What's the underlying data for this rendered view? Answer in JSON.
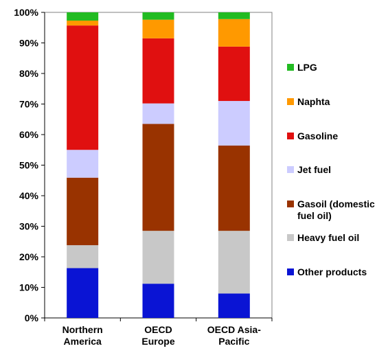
{
  "chart_data": {
    "type": "bar",
    "stacked": true,
    "categories": [
      "Northern\nAmerica",
      "OECD\nEurope",
      "OECD Asia-\nPacific"
    ],
    "ylim": [
      0,
      100
    ],
    "yticks": [
      0,
      10,
      20,
      30,
      40,
      50,
      60,
      70,
      80,
      90,
      100
    ],
    "ytick_labels": [
      "0%",
      "10%",
      "20%",
      "30%",
      "40%",
      "50%",
      "60%",
      "70%",
      "80%",
      "90%",
      "100%"
    ],
    "series": [
      {
        "name": "Other products",
        "color": "#0a14d4",
        "values": [
          16.3,
          11.2,
          8.0
        ]
      },
      {
        "name": "Heavy fuel oil",
        "color": "#c8c8c8",
        "values": [
          7.5,
          17.3,
          20.5
        ]
      },
      {
        "name": "Gasoil (domestic\nfuel oil)",
        "color": "#993300",
        "values": [
          22.1,
          35.0,
          27.9
        ]
      },
      {
        "name": "Jet fuel",
        "color": "#ccccff",
        "values": [
          9.1,
          6.7,
          14.6
        ]
      },
      {
        "name": "Gasoline",
        "color": "#e01010",
        "values": [
          40.7,
          21.3,
          17.8
        ]
      },
      {
        "name": "Naphta",
        "color": "#ff9900",
        "values": [
          1.6,
          6.1,
          9.0
        ]
      },
      {
        "name": "LPG",
        "color": "#22bb22",
        "values": [
          2.7,
          2.4,
          2.2
        ]
      }
    ],
    "legend_order": [
      "LPG",
      "Naphta",
      "Gasoline",
      "Jet fuel",
      "Gasoil (domestic\nfuel oil)",
      "Heavy fuel oil",
      "Other products"
    ],
    "legend_position": "right",
    "grid": false
  }
}
